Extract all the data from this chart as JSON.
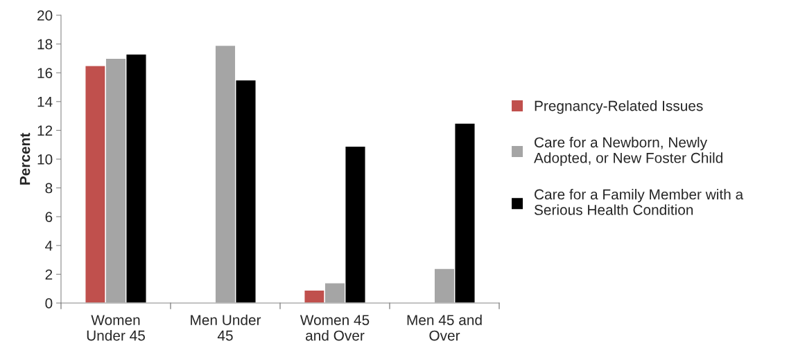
{
  "chart_data": {
    "type": "bar",
    "ylabel": "Percent",
    "categories": [
      "Women\nUnder 45",
      "Men Under\n45",
      "Women 45\nand Over",
      "Men 45 and\nOver"
    ],
    "series": [
      {
        "name": "Pregnancy-Related Issues",
        "color": "#c0504d",
        "values": [
          16.5,
          null,
          0.9,
          null
        ]
      },
      {
        "name": "Care for a Newborn, Newly\nAdopted, or New Foster Child",
        "color": "#a5a5a5",
        "values": [
          17.0,
          17.9,
          1.4,
          2.4
        ]
      },
      {
        "name": "Care for a Family Member with a\nSerious Health Condition",
        "color": "#000000",
        "values": [
          17.3,
          15.5,
          10.9,
          12.5
        ]
      }
    ],
    "ylim": [
      0,
      20
    ],
    "yticks": [
      0,
      2,
      4,
      6,
      8,
      10,
      12,
      14,
      16,
      18,
      20
    ],
    "grid": false,
    "legend": "right"
  }
}
